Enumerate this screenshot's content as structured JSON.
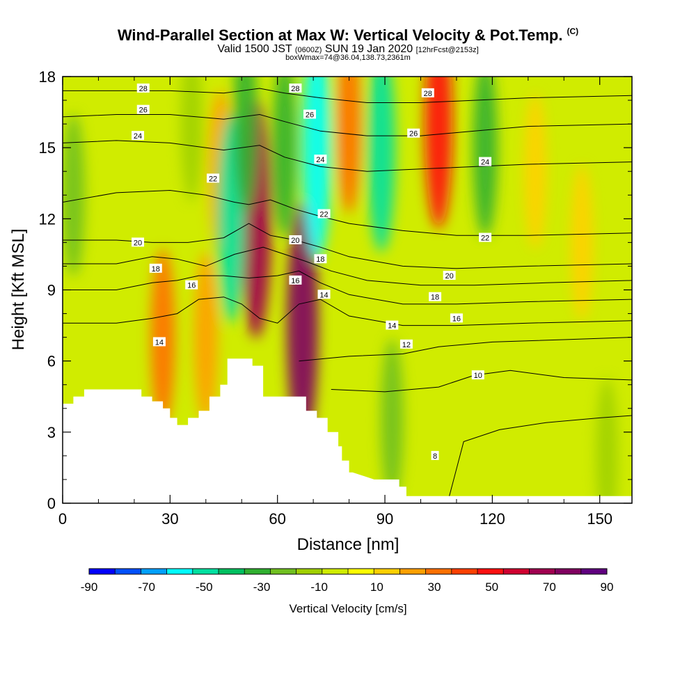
{
  "chart_data": {
    "type": "heatmap",
    "title": "Wind-Parallel Section at Max W: Vertical Velocity & Pot.Temp.",
    "copyright_mark": "(C)",
    "subtitle_valid": "Valid 1500 JST",
    "subtitle_utc": "(0600Z)",
    "subtitle_date": "SUN 19 Jan 2020",
    "subtitle_fcst": "[12hrFcst@2153z]",
    "subtitle_box": "boxWmax=74@36.04,138.73,2361m",
    "xlabel": "Distance [nm]",
    "ylabel": "Height [Kft MSL]",
    "xlim": [
      0,
      159
    ],
    "ylim": [
      0,
      18
    ],
    "x_ticks": [
      "0",
      "30",
      "60",
      "90",
      "120",
      "150"
    ],
    "x_tick_values": [
      0,
      30,
      60,
      90,
      120,
      150
    ],
    "y_ticks": [
      "0",
      "3",
      "6",
      "9",
      "12",
      "15",
      "18"
    ],
    "y_tick_values": [
      0,
      3,
      6,
      9,
      12,
      15,
      18
    ],
    "colorbar": {
      "label": "Vertical Velocity [cm/s]",
      "tick_labels": [
        "-90",
        "-70",
        "-50",
        "-30",
        "-10",
        "10",
        "30",
        "50",
        "70",
        "90"
      ],
      "range": [
        -90,
        90
      ],
      "colors": [
        "#0000ff",
        "#0050ff",
        "#00a0ff",
        "#00ffff",
        "#00e0a0",
        "#00c060",
        "#30b030",
        "#70c020",
        "#a0d000",
        "#d0ec00",
        "#ffff00",
        "#ffd000",
        "#ffa000",
        "#ff7000",
        "#ff4000",
        "#ff1010",
        "#d00030",
        "#a00050",
        "#800060",
        "#60007f"
      ]
    },
    "terrain": {
      "x": [
        0,
        3,
        3,
        6,
        6,
        22,
        22,
        25,
        25,
        28,
        28,
        30,
        30,
        32,
        32,
        35,
        35,
        38,
        38,
        41,
        41,
        44,
        44,
        46,
        46,
        53,
        53,
        56,
        56,
        68,
        68,
        71,
        71,
        74,
        74,
        77,
        77,
        78,
        78,
        80,
        80,
        81,
        81,
        87,
        87,
        94,
        94,
        96,
        96,
        98,
        98,
        159
      ],
      "y": [
        4.2,
        4.2,
        4.5,
        4.5,
        4.8,
        4.8,
        4.5,
        4.5,
        4.3,
        4.3,
        4.0,
        4.0,
        3.6,
        3.6,
        3.3,
        3.3,
        3.6,
        3.6,
        3.9,
        3.9,
        4.5,
        4.5,
        5.0,
        5.0,
        6.1,
        6.1,
        5.8,
        5.8,
        4.5,
        4.5,
        3.9,
        3.9,
        3.6,
        3.6,
        3.0,
        3.0,
        2.4,
        2.4,
        1.8,
        1.8,
        1.3,
        1.3,
        1.3,
        1.0,
        1.0,
        1.0,
        0.7,
        0.7,
        0.3,
        0.3,
        0.3,
        0.3
      ]
    },
    "w_features": [
      {
        "x": 54,
        "y": 12,
        "w": 70
      },
      {
        "x": 67,
        "y": 7.5,
        "w": 74
      },
      {
        "x": 28,
        "y": 7,
        "w": 30
      },
      {
        "x": 40,
        "y": 7,
        "w": 25
      },
      {
        "x": 105,
        "y": 16,
        "w": 50
      },
      {
        "x": 80,
        "y": 16,
        "w": 30
      },
      {
        "x": 44,
        "y": 14,
        "w": 20
      },
      {
        "x": 47,
        "y": 12,
        "w": -50
      },
      {
        "x": 51,
        "y": 16,
        "w": -30
      },
      {
        "x": 62,
        "y": 15,
        "w": -30
      },
      {
        "x": 71,
        "y": 15,
        "w": -60
      },
      {
        "x": 89,
        "y": 15,
        "w": -50
      },
      {
        "x": 118,
        "y": 15,
        "w": -30
      },
      {
        "x": 92,
        "y": 3.5,
        "w": -20
      },
      {
        "x": 3,
        "y": 13,
        "w": -20
      },
      {
        "x": 36,
        "y": 16,
        "w": -15
      },
      {
        "x": 152,
        "y": 2,
        "w": -15
      },
      {
        "x": 145,
        "y": 11,
        "w": 15
      },
      {
        "x": 132,
        "y": 14,
        "w": 15
      }
    ],
    "contours": [
      {
        "level": 8,
        "x": [
          108,
          112,
          122,
          135,
          150,
          159
        ],
        "y": [
          0.3,
          2.6,
          3.1,
          3.4,
          3.6,
          3.7
        ]
      },
      {
        "level": 10,
        "x": [
          75,
          90,
          105,
          115,
          125,
          140,
          159
        ],
        "y": [
          4.8,
          4.7,
          4.9,
          5.4,
          5.6,
          5.3,
          5.2
        ]
      },
      {
        "level": 12,
        "x": [
          66,
          80,
          95,
          105,
          120,
          140,
          159
        ],
        "y": [
          6.0,
          6.2,
          6.3,
          6.6,
          6.8,
          6.9,
          7.0
        ]
      },
      {
        "level": 14,
        "x": [
          0,
          15,
          25,
          32,
          38,
          45,
          50,
          55,
          60,
          66,
          72,
          80,
          95,
          110,
          130,
          159
        ],
        "y": [
          7.6,
          7.6,
          7.8,
          8.0,
          8.6,
          8.7,
          8.4,
          7.8,
          7.6,
          8.4,
          8.6,
          7.9,
          7.5,
          7.5,
          7.6,
          7.7
        ]
      },
      {
        "level": 16,
        "x": [
          0,
          15,
          25,
          32,
          38,
          45,
          52,
          60,
          66,
          72,
          80,
          95,
          110,
          130,
          159
        ],
        "y": [
          9.0,
          9.0,
          9.3,
          9.4,
          9.6,
          9.6,
          9.5,
          9.6,
          9.8,
          9.3,
          8.8,
          8.4,
          8.4,
          8.5,
          8.6
        ]
      },
      {
        "level": 18,
        "x": [
          0,
          15,
          25,
          32,
          40,
          48,
          56,
          62,
          68,
          75,
          85,
          100,
          115,
          135,
          159
        ],
        "y": [
          10.1,
          10.1,
          10.4,
          10.3,
          10.0,
          10.5,
          10.8,
          10.5,
          10.2,
          9.8,
          9.4,
          9.2,
          9.2,
          9.3,
          9.4
        ]
      },
      {
        "level": 20,
        "x": [
          0,
          15,
          25,
          35,
          45,
          52,
          58,
          65,
          72,
          80,
          95,
          110,
          130,
          159
        ],
        "y": [
          11.1,
          11.1,
          11.0,
          11.0,
          11.2,
          11.8,
          11.3,
          11.1,
          10.8,
          10.4,
          10.0,
          9.9,
          10.0,
          10.1
        ]
      },
      {
        "level": 22,
        "x": [
          0,
          15,
          30,
          40,
          48,
          52,
          58,
          65,
          72,
          80,
          95,
          110,
          130,
          159
        ],
        "y": [
          12.7,
          13.1,
          13.2,
          13.0,
          12.7,
          12.6,
          12.8,
          12.4,
          12.1,
          11.8,
          11.5,
          11.3,
          11.3,
          11.4
        ]
      },
      {
        "level": 24,
        "x": [
          0,
          15,
          30,
          45,
          55,
          62,
          72,
          85,
          100,
          115,
          130,
          159
        ],
        "y": [
          15.2,
          15.3,
          15.2,
          14.9,
          15.1,
          14.6,
          14.2,
          14.0,
          14.1,
          14.2,
          14.3,
          14.4
        ]
      },
      {
        "level": 26,
        "x": [
          0,
          15,
          30,
          45,
          55,
          62,
          72,
          85,
          100,
          115,
          130,
          159
        ],
        "y": [
          16.3,
          16.4,
          16.4,
          16.2,
          16.4,
          16.1,
          15.7,
          15.5,
          15.5,
          15.7,
          15.9,
          16.0
        ]
      },
      {
        "level": 28,
        "x": [
          0,
          15,
          30,
          45,
          55,
          62,
          72,
          85,
          100,
          115,
          130,
          159
        ],
        "y": [
          17.4,
          17.4,
          17.4,
          17.3,
          17.5,
          17.3,
          17.1,
          16.9,
          16.9,
          17.0,
          17.1,
          17.2
        ]
      }
    ],
    "contour_labels": [
      {
        "text": "28",
        "x": 22.5,
        "y": 17.5
      },
      {
        "text": "26",
        "x": 22.5,
        "y": 16.6
      },
      {
        "text": "24",
        "x": 21,
        "y": 15.5
      },
      {
        "text": "22",
        "x": 42,
        "y": 13.7
      },
      {
        "text": "20",
        "x": 21,
        "y": 11.0
      },
      {
        "text": "18",
        "x": 26,
        "y": 9.9
      },
      {
        "text": "16",
        "x": 36,
        "y": 9.2
      },
      {
        "text": "14",
        "x": 27,
        "y": 6.8
      },
      {
        "text": "28",
        "x": 65,
        "y": 17.5
      },
      {
        "text": "26",
        "x": 69,
        "y": 16.4
      },
      {
        "text": "24",
        "x": 72,
        "y": 14.5
      },
      {
        "text": "22",
        "x": 73,
        "y": 12.2
      },
      {
        "text": "20",
        "x": 65,
        "y": 11.1
      },
      {
        "text": "18",
        "x": 72,
        "y": 10.3
      },
      {
        "text": "16",
        "x": 65,
        "y": 9.4
      },
      {
        "text": "14",
        "x": 73,
        "y": 8.8
      },
      {
        "text": "28",
        "x": 102,
        "y": 17.3
      },
      {
        "text": "26",
        "x": 98,
        "y": 15.6
      },
      {
        "text": "24",
        "x": 118,
        "y": 14.4
      },
      {
        "text": "22",
        "x": 118,
        "y": 11.2
      },
      {
        "text": "20",
        "x": 108,
        "y": 9.6
      },
      {
        "text": "18",
        "x": 104,
        "y": 8.7
      },
      {
        "text": "16",
        "x": 110,
        "y": 7.8
      },
      {
        "text": "14",
        "x": 92,
        "y": 7.5
      },
      {
        "text": "12",
        "x": 96,
        "y": 6.7
      },
      {
        "text": "10",
        "x": 116,
        "y": 5.4
      },
      {
        "text": "8",
        "x": 104,
        "y": 2.0
      }
    ]
  }
}
